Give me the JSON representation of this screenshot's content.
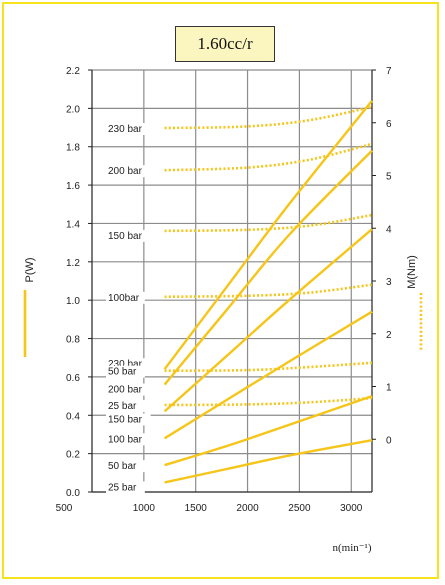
{
  "chart_data": {
    "type": "line",
    "title": "1.60cc/r",
    "xlabel": "n(min⁻¹)",
    "ylabel_left": "P(W)",
    "ylabel_right": "M(Nm)",
    "xlim": [
      500,
      3200
    ],
    "ylim_left": [
      0,
      2.2
    ],
    "ylim_right": [
      -1,
      7
    ],
    "x_ticks": [
      "500",
      "1000",
      "1500",
      "2000",
      "2500",
      "3000"
    ],
    "y_left_ticks": [
      "0.0",
      "0.2",
      "0.4",
      "0.6",
      "0.8",
      "1.0",
      "1.2",
      "1.4",
      "1.6",
      "1.8",
      "2.0",
      "2.2"
    ],
    "y_right_ticks": [
      "0",
      "1",
      "2",
      "3",
      "4",
      "5",
      "6",
      "7"
    ],
    "grid": true,
    "colors": {
      "line": "#f5c518",
      "frame": "#f5e41c",
      "grid": "#8c8c8c",
      "axis": "#222222",
      "title_bg": "#fbf6bf"
    },
    "power_series": [
      {
        "name": "230 bar",
        "x": [
          1200,
          1800,
          2400,
          3200
        ],
        "y": [
          0.64,
          1.07,
          1.5,
          2.04
        ]
      },
      {
        "name": "200 bar",
        "x": [
          1200,
          1800,
          2400,
          3200
        ],
        "y": [
          0.56,
          0.95,
          1.34,
          1.78
        ]
      },
      {
        "name": "150 bar",
        "x": [
          1200,
          1800,
          2400,
          3200
        ],
        "y": [
          0.42,
          0.71,
          1.0,
          1.37
        ]
      },
      {
        "name": "100 bar",
        "x": [
          1200,
          1800,
          2400,
          3200
        ],
        "y": [
          0.28,
          0.48,
          0.68,
          0.94
        ]
      },
      {
        "name": "50 bar",
        "x": [
          1200,
          1800,
          2400,
          3200
        ],
        "y": [
          0.14,
          0.24,
          0.35,
          0.5
        ]
      },
      {
        "name": "25 bar",
        "x": [
          1200,
          1800,
          2400,
          3200
        ],
        "y": [
          0.05,
          0.12,
          0.19,
          0.27
        ]
      }
    ],
    "torque_series": [
      {
        "name": "230 bar",
        "x": [
          1200,
          2000,
          2600,
          3200
        ],
        "y": [
          5.9,
          5.93,
          6.05,
          6.3
        ]
      },
      {
        "name": "200 bar",
        "x": [
          1200,
          2000,
          2600,
          3200
        ],
        "y": [
          5.1,
          5.15,
          5.3,
          5.6
        ]
      },
      {
        "name": "150 bar",
        "x": [
          1200,
          2000,
          2600,
          3200
        ],
        "y": [
          3.95,
          3.97,
          4.05,
          4.25
        ]
      },
      {
        "name": "100bar",
        "x": [
          1200,
          2000,
          2600,
          3200
        ],
        "y": [
          2.7,
          2.72,
          2.78,
          2.93
        ]
      },
      {
        "name": "50 bar",
        "x": [
          1200,
          2000,
          2600,
          3200
        ],
        "y": [
          1.3,
          1.31,
          1.37,
          1.45
        ]
      },
      {
        "name": "25 bar",
        "x": [
          1200,
          2000,
          2600,
          3200
        ],
        "y": [
          0.65,
          0.66,
          0.7,
          0.78
        ]
      }
    ]
  }
}
